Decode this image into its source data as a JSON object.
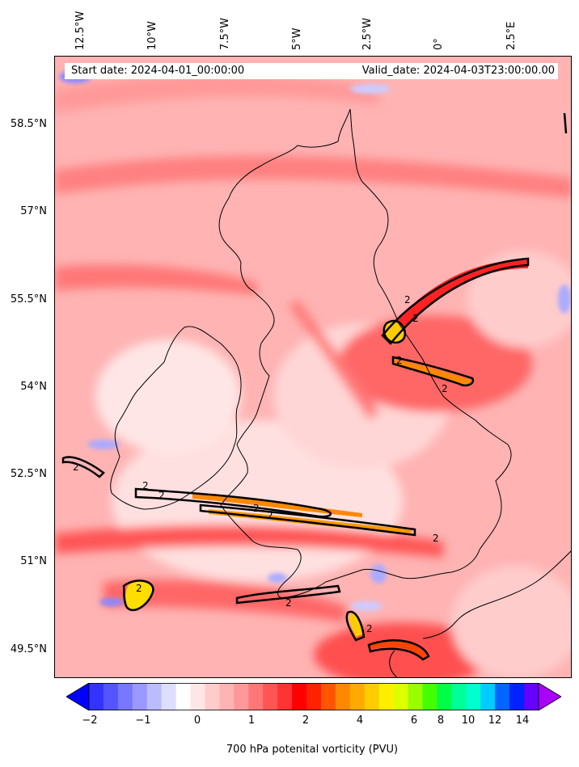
{
  "header": {
    "start_date": "Start date: 2024-04-01_00:00:00",
    "valid_date": "Valid_date: 2024-04-03T23:00:00.00"
  },
  "longitude_labels": [
    "12.5°W",
    "10°W",
    "7.5°W",
    "5°W",
    "2.5°W",
    "0°",
    "2.5°E"
  ],
  "latitude_labels": [
    "58.5°N",
    "57°N",
    "55.5°N",
    "54°N",
    "52.5°N",
    "51°N",
    "49.5°N"
  ],
  "colorbar": {
    "label": "700 hPa potenital vorticity (PVU)",
    "ticks": [
      "−2",
      "−1",
      "0",
      "1",
      "2",
      "4",
      "6",
      "8",
      "10",
      "12",
      "14"
    ],
    "colors": [
      "#0000ff",
      "#3333ff",
      "#5555ff",
      "#7777ff",
      "#9999ff",
      "#bbbbff",
      "#ddddff",
      "#ffffff",
      "#ffe6e6",
      "#ffcccc",
      "#ffb3b3",
      "#ff9999",
      "#ff7777",
      "#ff5555",
      "#ff3333",
      "#ff0000",
      "#ff2200",
      "#ff5500",
      "#ff8800",
      "#ffaa00",
      "#ffcc00",
      "#ffee00",
      "#ddff00",
      "#99ff00",
      "#44ff00",
      "#00ff44",
      "#00ff99",
      "#00ffcc",
      "#00ccff",
      "#0066ff",
      "#0022ff",
      "#6600ff",
      "#aa00ff"
    ]
  },
  "contour_label": "2"
}
